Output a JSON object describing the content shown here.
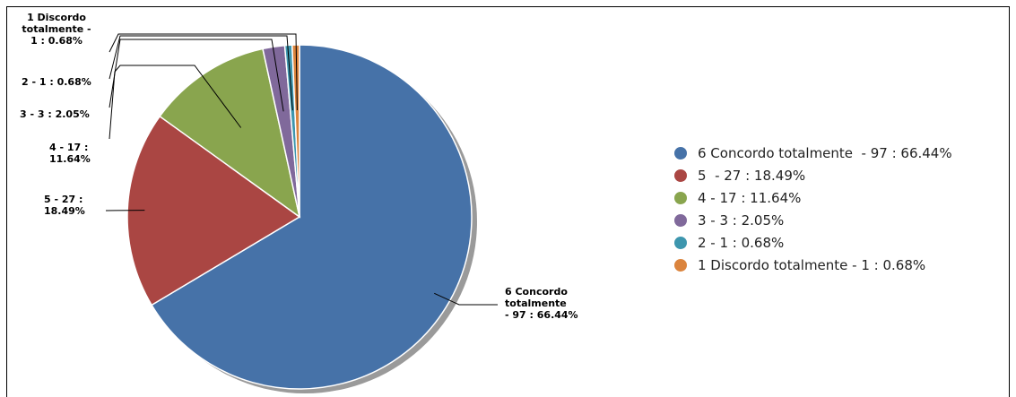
{
  "chart_data": {
    "type": "pie",
    "start_angle_deg": 0,
    "direction": "clockwise",
    "legend_position": "right",
    "slices": [
      {
        "legend": "6 Concordo totalmente  - 97 : 66.44%",
        "callout": [
          "6 Concordo",
          "totalmente",
          "- 97 : 66.44%"
        ],
        "value": 97,
        "percent": 66.44,
        "color": "#4672a8"
      },
      {
        "legend": "5  - 27 : 18.49%",
        "callout": [
          "5  - 27 :",
          "18.49%"
        ],
        "value": 27,
        "percent": 18.49,
        "color": "#aa4643"
      },
      {
        "legend": "4 - 17 : 11.64%",
        "callout": [
          "4 - 17 :",
          "11.64%"
        ],
        "value": 17,
        "percent": 11.64,
        "color": "#89a54e"
      },
      {
        "legend": "3 - 3 : 2.05%",
        "callout": [
          "3 - 3 : 2.05%"
        ],
        "value": 3,
        "percent": 2.05,
        "color": "#80699b"
      },
      {
        "legend": "2 - 1 : 0.68%",
        "callout": [
          "2 - 1 : 0.68%"
        ],
        "value": 1,
        "percent": 0.68,
        "color": "#3d96ae"
      },
      {
        "legend": "1 Discordo totalmente - 1 : 0.68%",
        "callout": [
          "1 Discordo",
          "totalmente -",
          "1 : 0.68%"
        ],
        "value": 1,
        "percent": 0.68,
        "color": "#db843d"
      }
    ]
  }
}
